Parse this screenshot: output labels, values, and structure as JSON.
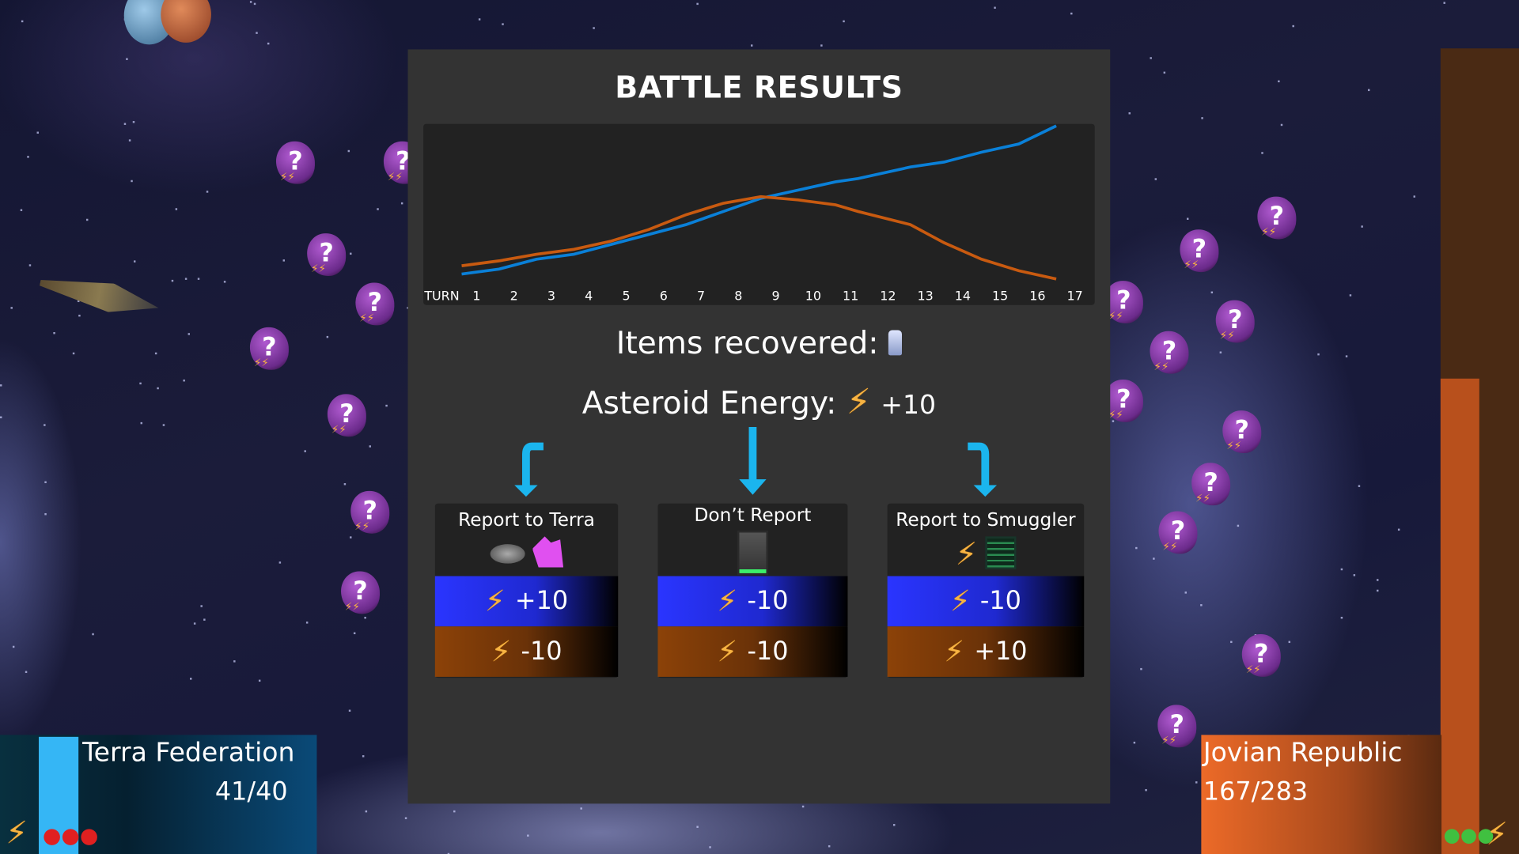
{
  "modal": {
    "title": "BATTLE RESULTS",
    "items_label": "Items recovered:",
    "items_icon": "ship-part-icon",
    "energy_label": "Asteroid Energy:",
    "energy_value": "+10"
  },
  "chart_data": {
    "type": "line",
    "xlabel": "TURN",
    "x_ticks": [
      "1",
      "2",
      "3",
      "4",
      "5",
      "6",
      "7",
      "8",
      "9",
      "10",
      "11",
      "12",
      "13",
      "14",
      "15",
      "16",
      "17"
    ],
    "x": [
      0.6,
      1.6,
      2.6,
      3.6,
      4.6,
      5.6,
      6.6,
      7.6,
      8.6,
      9.6,
      10.6,
      11.2,
      12.6,
      13.5,
      14.5,
      15.5,
      16.5
    ],
    "series": [
      {
        "color": "#0a80d8",
        "values": [
          10,
          13,
          19,
          22,
          28,
          34,
          40,
          48,
          56,
          61,
          66,
          68,
          75,
          78,
          84,
          89,
          100
        ]
      },
      {
        "color": "#c85a10",
        "values": [
          15,
          18,
          22,
          25,
          30,
          37,
          46,
          53,
          57,
          55,
          52,
          48,
          40,
          29,
          19,
          12,
          7
        ]
      }
    ],
    "grid": false
  },
  "options": [
    {
      "label": "Report to Terra",
      "icons": [
        "asteroid-rock-icon",
        "crystal-icon"
      ],
      "terra": "+10",
      "jovian": "-10"
    },
    {
      "label": "Don’t Report",
      "icons": [
        "robot-icon"
      ],
      "terra": "-10",
      "jovian": "-10"
    },
    {
      "label": "Report to Smuggler",
      "icons": [
        "energy-bolt-icon",
        "data-terminal-icon"
      ],
      "terra": "-10",
      "jovian": "+10"
    }
  ],
  "factions": {
    "terra": {
      "name": "Terra Federation",
      "score": "41/40",
      "color": "#35b6f5"
    },
    "jovian": {
      "name": "Jovian Republic",
      "score": "167/283",
      "color": "#ec6a28"
    }
  }
}
